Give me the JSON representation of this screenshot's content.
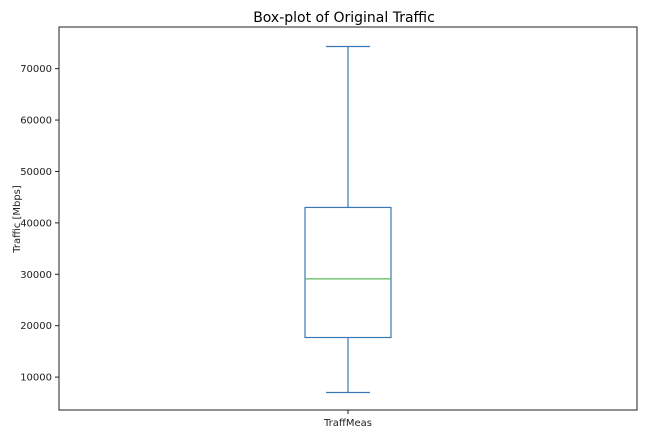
{
  "chart_data": {
    "type": "box",
    "title": "Box-plot of Original Traffic",
    "xlabel": "",
    "ylabel": "Traffic [Mbps]",
    "categories": [
      "TraffMeas"
    ],
    "boxes": [
      {
        "category": "TraffMeas",
        "whisker_low": 7000,
        "q1": 17700,
        "median": 29100,
        "q3": 43000,
        "whisker_high": 74300
      }
    ],
    "y_ticks": [
      10000,
      20000,
      30000,
      40000,
      50000,
      60000,
      70000
    ],
    "ylim": [
      3600,
      78100
    ],
    "grid": false,
    "colors": {
      "box": "#3a78b5",
      "median": "#5cb85c",
      "axis": "#222222"
    }
  }
}
